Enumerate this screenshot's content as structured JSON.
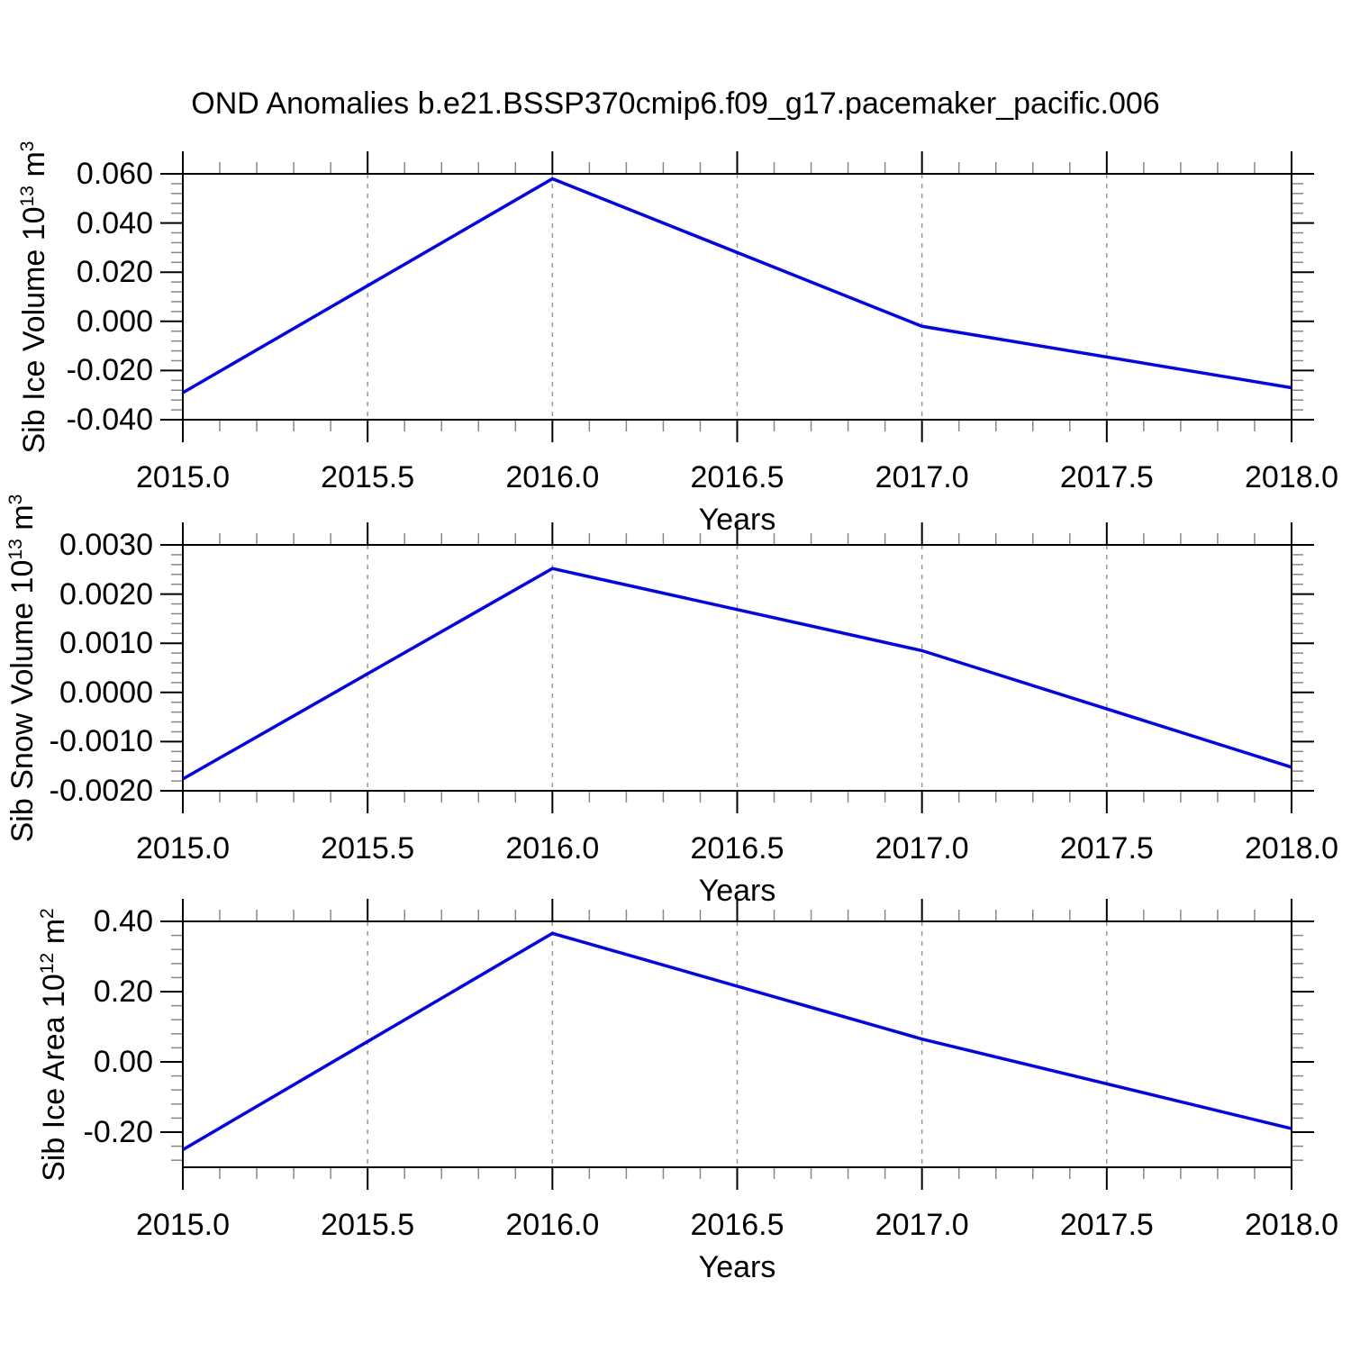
{
  "title": "OND Anomalies b.e21.BSSP370cmip6.f09_g17.pacemaker_pacific.006",
  "x_axis": {
    "title": "Years",
    "labels": [
      "2015.0",
      "2015.5",
      "2016.0",
      "2016.5",
      "2017.0",
      "2017.5",
      "2018.0"
    ],
    "tick_values": [
      2015.0,
      2015.5,
      2016.0,
      2016.5,
      2017.0,
      2017.5,
      2018.0
    ],
    "range": [
      2015.0,
      2018.0
    ],
    "minor_step": 0.1,
    "gridline_values": [
      2015.5,
      2016.0,
      2016.5,
      2017.0,
      2017.5
    ]
  },
  "style": {
    "line_color": "#0000ff",
    "axis_color": "#000000",
    "minor_tick_color": "#888888",
    "gridline_color": "#999999",
    "background": "#ffffff"
  },
  "chart_data": [
    {
      "type": "line",
      "name": "sib-ice-volume",
      "ylabel": "Sib Ice Volume 10^13 m^3",
      "ylabel_parts": [
        {
          "text": "Sib Ice Volume 10",
          "sup": false
        },
        {
          "text": "13",
          "sup": true
        },
        {
          "text": " m",
          "sup": false
        },
        {
          "text": "3",
          "sup": true
        }
      ],
      "xlabel": "Years",
      "x": [
        2015,
        2016,
        2017,
        2018
      ],
      "values": [
        -0.029,
        0.058,
        -0.002,
        -0.027
      ],
      "ylim": [
        -0.04,
        0.06
      ],
      "ytick_labels": [
        "0.060",
        "0.040",
        "0.020",
        "0.000",
        "-0.020",
        "-0.040"
      ],
      "ytick_values": [
        0.06,
        0.04,
        0.02,
        0.0,
        -0.02,
        -0.04
      ],
      "yminor_step": 0.004,
      "grid": "vertical-dashed",
      "legend": "none"
    },
    {
      "type": "line",
      "name": "sib-snow-volume",
      "ylabel": "Sib Snow Volume 10^13 m^3",
      "ylabel_parts": [
        {
          "text": "Sib Snow Volume 10",
          "sup": false
        },
        {
          "text": "13",
          "sup": true
        },
        {
          "text": " m",
          "sup": false
        },
        {
          "text": "3",
          "sup": true
        }
      ],
      "xlabel": "Years",
      "x": [
        2015,
        2016,
        2017,
        2018
      ],
      "values": [
        -0.00176,
        0.00252,
        0.00085,
        -0.00152
      ],
      "ylim": [
        -0.002,
        0.003
      ],
      "ytick_labels": [
        "0.0030",
        "0.0020",
        "0.0010",
        "0.0000",
        "-0.0010",
        "-0.0020"
      ],
      "ytick_values": [
        0.003,
        0.002,
        0.001,
        0.0,
        -0.001,
        -0.002
      ],
      "yminor_step": 0.0002,
      "grid": "vertical-dashed",
      "legend": "none"
    },
    {
      "type": "line",
      "name": "sib-ice-area",
      "ylabel": "Sib Ice Area 10^12 m^2",
      "ylabel_parts": [
        {
          "text": "Sib Ice Area 10",
          "sup": false
        },
        {
          "text": "12",
          "sup": true
        },
        {
          "text": " m",
          "sup": false
        },
        {
          "text": "2",
          "sup": true
        }
      ],
      "xlabel": "Years",
      "x": [
        2015,
        2016,
        2017,
        2018
      ],
      "values": [
        -0.25,
        0.366,
        0.065,
        -0.19
      ],
      "ylim": [
        -0.3,
        0.4
      ],
      "ytick_labels": [
        "0.40",
        "0.20",
        "0.00",
        "-0.20"
      ],
      "ytick_values": [
        0.4,
        0.2,
        0.0,
        -0.2
      ],
      "yminor_step": 0.04,
      "grid": "vertical-dashed",
      "legend": "none"
    }
  ]
}
